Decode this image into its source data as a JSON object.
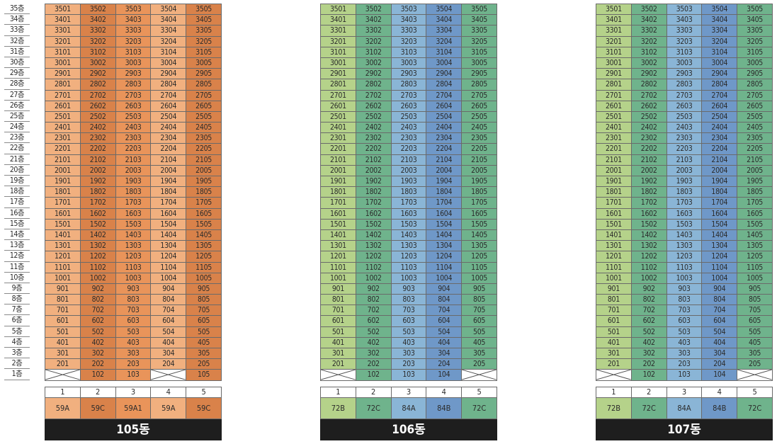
{
  "floor_labels": [
    "35층",
    "34층",
    "33층",
    "32층",
    "31층",
    "30층",
    "29층",
    "28층",
    "27층",
    "26층",
    "25층",
    "24층",
    "23층",
    "22층",
    "21층",
    "20층",
    "19층",
    "18층",
    "17층",
    "16층",
    "15층",
    "14층",
    "13층",
    "12층",
    "11층",
    "10층",
    "9층",
    "8층",
    "7층",
    "6층",
    "5층",
    "4층",
    "3층",
    "2층",
    "1층"
  ],
  "line_numbers": [
    "1",
    "2",
    "3",
    "4",
    "5"
  ],
  "buildings": [
    {
      "name": "105동",
      "line_colors": [
        "#f1b07f",
        "#d9824a",
        "#e9945a",
        "#f1b07f",
        "#d9824a"
      ],
      "types": [
        "59A",
        "59C",
        "59A1",
        "59A",
        "59C"
      ],
      "type_colors": [
        "#f1b07f",
        "#d9824a",
        "#e9945a",
        "#f1b07f",
        "#d9824a"
      ],
      "ground_floor": [
        "",
        "102",
        "103",
        "",
        "105"
      ]
    },
    {
      "name": "106동",
      "line_colors": [
        "#b5d28a",
        "#6fb38c",
        "#8ab5d6",
        "#6f98c8",
        "#6fb38c"
      ],
      "types": [
        "72B",
        "72C",
        "84A",
        "84B",
        "72C"
      ],
      "type_colors": [
        "#b5d28a",
        "#6fb38c",
        "#8ab5d6",
        "#6f98c8",
        "#6fb38c"
      ],
      "ground_floor": [
        "",
        "102",
        "103",
        "104",
        ""
      ]
    },
    {
      "name": "107동",
      "line_colors": [
        "#b5d28a",
        "#6fb38c",
        "#8ab5d6",
        "#6f98c8",
        "#6fb38c"
      ],
      "types": [
        "72B",
        "72C",
        "84A",
        "84B",
        "72C"
      ],
      "type_colors": [
        "#b5d28a",
        "#6fb38c",
        "#8ab5d6",
        "#6f98c8",
        "#6fb38c"
      ],
      "ground_floor": [
        "",
        "102",
        "103",
        "104",
        ""
      ]
    }
  ]
}
